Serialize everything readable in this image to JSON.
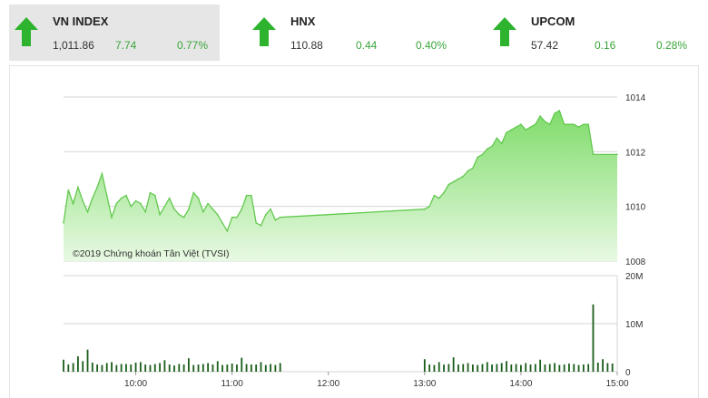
{
  "indices": [
    {
      "name": "VN INDEX",
      "value": "1,011.86",
      "change": "7.74",
      "percent": "0.77%",
      "direction": "up",
      "active": true
    },
    {
      "name": "HNX",
      "value": "110.88",
      "change": "0.44",
      "percent": "0.40%",
      "direction": "up",
      "active": false
    },
    {
      "name": "UPCOM",
      "value": "57.42",
      "change": "0.16",
      "percent": "0.28%",
      "direction": "up",
      "active": false
    }
  ],
  "colors": {
    "up": "#2db32d",
    "change_text": "#3aa53a",
    "area_top": "#7fdc6a",
    "area_bottom": "#e8f9e3",
    "line": "#62c94e",
    "volume": "#1a5d1a",
    "grid": "#d6d6d6"
  },
  "copyright": "©2019 Chứng khoán Tân Việt (TVSI)",
  "chart_data": [
    {
      "type": "area",
      "y_ticks": [
        "1014",
        "1012",
        "1010",
        "1008"
      ],
      "ylim": [
        1008,
        1014
      ],
      "x_ticks": [
        "10:00",
        "11:00",
        "12:00",
        "13:00",
        "14:00",
        "15:00"
      ],
      "xlim": [
        "09:15",
        "15:00"
      ],
      "grid": true,
      "x": [
        "09:15",
        "09:18",
        "09:21",
        "09:24",
        "09:27",
        "09:30",
        "09:33",
        "09:36",
        "09:39",
        "09:42",
        "09:45",
        "09:48",
        "09:51",
        "09:54",
        "09:57",
        "10:00",
        "10:03",
        "10:06",
        "10:09",
        "10:12",
        "10:15",
        "10:18",
        "10:21",
        "10:24",
        "10:27",
        "10:30",
        "10:33",
        "10:36",
        "10:39",
        "10:42",
        "10:45",
        "10:48",
        "10:51",
        "10:54",
        "10:57",
        "11:00",
        "11:03",
        "11:06",
        "11:09",
        "11:12",
        "11:15",
        "11:18",
        "11:21",
        "11:24",
        "11:27",
        "11:30",
        "13:00",
        "13:03",
        "13:06",
        "13:09",
        "13:12",
        "13:15",
        "13:18",
        "13:21",
        "13:24",
        "13:27",
        "13:30",
        "13:33",
        "13:36",
        "13:39",
        "13:42",
        "13:45",
        "13:48",
        "13:51",
        "13:54",
        "13:57",
        "14:00",
        "14:03",
        "14:06",
        "14:09",
        "14:12",
        "14:15",
        "14:18",
        "14:21",
        "14:24",
        "14:27",
        "14:30",
        "14:33",
        "14:36",
        "14:39",
        "14:42",
        "14:45",
        "15:00"
      ],
      "values": [
        1009.4,
        1010.6,
        1010.1,
        1010.7,
        1010.2,
        1009.8,
        1010.3,
        1010.7,
        1011.2,
        1010.4,
        1009.6,
        1010.1,
        1010.3,
        1010.4,
        1010.0,
        1010.2,
        1010.1,
        1009.8,
        1010.5,
        1010.4,
        1009.7,
        1010.0,
        1010.3,
        1009.9,
        1009.7,
        1009.6,
        1009.9,
        1010.5,
        1010.3,
        1009.8,
        1010.1,
        1009.9,
        1009.7,
        1009.4,
        1009.1,
        1009.6,
        1009.6,
        1009.9,
        1010.4,
        1010.4,
        1009.4,
        1009.3,
        1009.7,
        1009.9,
        1009.5,
        1009.6,
        1009.9,
        1010.0,
        1010.4,
        1010.3,
        1010.5,
        1010.8,
        1010.9,
        1011.0,
        1011.1,
        1011.3,
        1011.4,
        1011.8,
        1011.9,
        1012.1,
        1012.2,
        1012.5,
        1012.3,
        1012.7,
        1012.8,
        1012.9,
        1013.0,
        1012.8,
        1012.9,
        1013.0,
        1013.3,
        1013.1,
        1013.0,
        1013.4,
        1013.5,
        1013.0,
        1013.0,
        1013.0,
        1012.9,
        1013.0,
        1013.0,
        1011.9,
        1011.9
      ]
    },
    {
      "type": "bar",
      "y_ticks": [
        "20M",
        "10M",
        "0"
      ],
      "ylim": [
        0,
        20
      ],
      "yunit": "M",
      "x_ticks": [
        "10:00",
        "11:00",
        "12:00",
        "13:00",
        "14:00",
        "15:00"
      ],
      "grid": true,
      "x": [
        "09:15",
        "09:18",
        "09:21",
        "09:24",
        "09:27",
        "09:30",
        "09:33",
        "09:36",
        "09:39",
        "09:42",
        "09:45",
        "09:48",
        "09:51",
        "09:54",
        "09:57",
        "10:00",
        "10:03",
        "10:06",
        "10:09",
        "10:12",
        "10:15",
        "10:18",
        "10:21",
        "10:24",
        "10:27",
        "10:30",
        "10:33",
        "10:36",
        "10:39",
        "10:42",
        "10:45",
        "10:48",
        "10:51",
        "10:54",
        "10:57",
        "11:00",
        "11:03",
        "11:06",
        "11:09",
        "11:12",
        "11:15",
        "11:18",
        "11:21",
        "11:24",
        "11:27",
        "11:30",
        "13:00",
        "13:03",
        "13:06",
        "13:09",
        "13:12",
        "13:15",
        "13:18",
        "13:21",
        "13:24",
        "13:27",
        "13:30",
        "13:33",
        "13:36",
        "13:39",
        "13:42",
        "13:45",
        "13:48",
        "13:51",
        "13:54",
        "13:57",
        "14:00",
        "14:03",
        "14:06",
        "14:09",
        "14:12",
        "14:15",
        "14:18",
        "14:21",
        "14:24",
        "14:27",
        "14:30",
        "14:33",
        "14:36",
        "14:39",
        "14:42",
        "14:45",
        "14:48",
        "14:51",
        "14:54",
        "14:57"
      ],
      "values": [
        2.5,
        1.5,
        1.8,
        3.2,
        2.2,
        4.6,
        1.9,
        1.5,
        1.4,
        1.8,
        2.0,
        1.4,
        1.6,
        1.6,
        1.5,
        1.9,
        2.0,
        1.5,
        1.4,
        1.6,
        1.8,
        2.4,
        1.5,
        1.3,
        1.6,
        1.5,
        2.8,
        1.4,
        1.5,
        1.6,
        1.8,
        1.5,
        2.2,
        1.4,
        1.5,
        1.7,
        1.5,
        2.9,
        1.6,
        1.5,
        1.5,
        2.0,
        1.4,
        1.6,
        1.4,
        1.8,
        2.6,
        1.5,
        1.4,
        2.0,
        1.5,
        1.6,
        3.0,
        1.5,
        1.6,
        1.8,
        1.5,
        1.4,
        1.6,
        2.0,
        1.5,
        1.6,
        1.8,
        2.2,
        1.5,
        1.6,
        1.4,
        1.8,
        1.5,
        1.6,
        2.5,
        1.5,
        1.6,
        1.8,
        1.4,
        1.5,
        1.7,
        1.6,
        1.4,
        1.5,
        1.6,
        14.0,
        1.9,
        2.6,
        1.8,
        1.7
      ]
    }
  ]
}
